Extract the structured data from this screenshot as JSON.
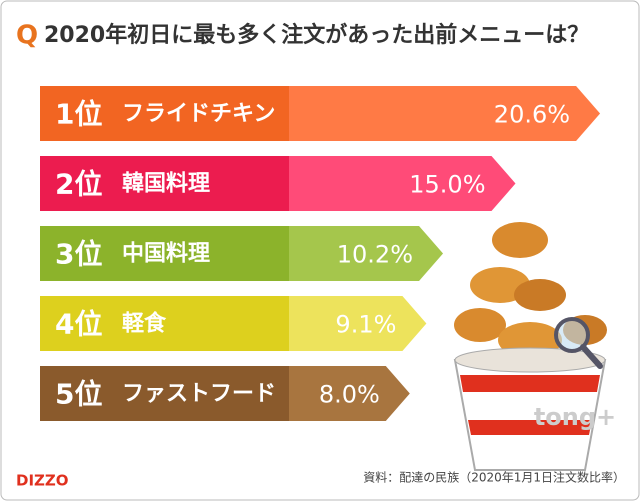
{
  "chart_data": {
    "type": "bar",
    "title_prefix": "Q",
    "title": "2020年初日に最も多く注文があった出前メニューは？",
    "ranks": [
      "1位",
      "2位",
      "3位",
      "4位",
      "5位"
    ],
    "categories": [
      "フライドチキン",
      "韓国料理",
      "中国料理",
      "軽食",
      "ファストフード"
    ],
    "values": [
      20.6,
      15.0,
      10.2,
      9.1,
      8.0
    ],
    "value_labels": [
      "20.6%",
      "15.0%",
      "10.2%",
      "9.1%",
      "8.0%"
    ],
    "colors": [
      "#f26522",
      "#ec1c4f",
      "#8cb32b",
      "#ddd01e",
      "#8a5a2c"
    ],
    "light_colors": [
      "#ff7a45",
      "#ff4b78",
      "#a5c64c",
      "#ede35c",
      "#a8753f"
    ],
    "source": "資料：配達の民族（2020年1月1日注文数比率）",
    "brand": "DIZZO",
    "watermark": "tong+"
  }
}
